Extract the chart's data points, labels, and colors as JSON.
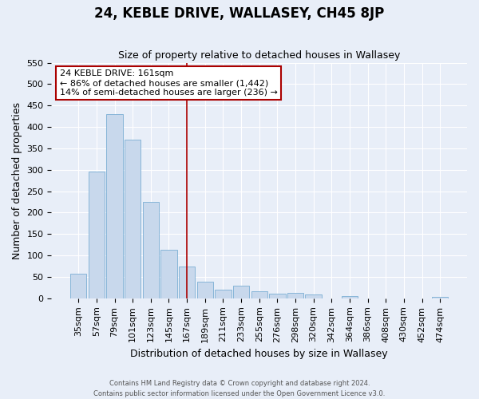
{
  "title": "24, KEBLE DRIVE, WALLASEY, CH45 8JP",
  "subtitle": "Size of property relative to detached houses in Wallasey",
  "xlabel": "Distribution of detached houses by size in Wallasey",
  "ylabel": "Number of detached properties",
  "bar_labels": [
    "35sqm",
    "57sqm",
    "79sqm",
    "101sqm",
    "123sqm",
    "145sqm",
    "167sqm",
    "189sqm",
    "211sqm",
    "233sqm",
    "255sqm",
    "276sqm",
    "298sqm",
    "320sqm",
    "342sqm",
    "364sqm",
    "386sqm",
    "408sqm",
    "430sqm",
    "452sqm",
    "474sqm"
  ],
  "bar_values": [
    57,
    295,
    430,
    370,
    225,
    113,
    75,
    38,
    21,
    29,
    17,
    10,
    12,
    9,
    0,
    5,
    0,
    0,
    0,
    0,
    4
  ],
  "bar_color": "#c8d8ec",
  "bar_edge_color": "#7aaed4",
  "vline_x": 6,
  "vline_color": "#aa0000",
  "annotation_title": "24 KEBLE DRIVE: 161sqm",
  "annotation_line1": "← 86% of detached houses are smaller (1,442)",
  "annotation_line2": "14% of semi-detached houses are larger (236) →",
  "annotation_box_edge": "#aa0000",
  "ylim": [
    0,
    550
  ],
  "yticks": [
    0,
    50,
    100,
    150,
    200,
    250,
    300,
    350,
    400,
    450,
    500,
    550
  ],
  "footer1": "Contains HM Land Registry data © Crown copyright and database right 2024.",
  "footer2": "Contains public sector information licensed under the Open Government Licence v3.0.",
  "background_color": "#e8eef8",
  "plot_background": "#e8eef8",
  "grid_color": "#ffffff",
  "title_fontsize": 12,
  "subtitle_fontsize": 9,
  "tick_fontsize": 8,
  "ylabel_fontsize": 9,
  "xlabel_fontsize": 9
}
